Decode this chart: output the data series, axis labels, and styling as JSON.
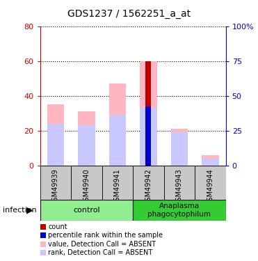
{
  "title": "GDS1237 / 1562251_a_at",
  "samples": [
    "GSM49939",
    "GSM49940",
    "GSM49941",
    "GSM49942",
    "GSM49943",
    "GSM49944"
  ],
  "value_bars": [
    35,
    31,
    47,
    60,
    21,
    6
  ],
  "rank_bars": [
    24,
    23,
    29,
    33,
    19,
    4
  ],
  "count_bars": [
    0,
    0,
    0,
    60,
    0,
    0
  ],
  "pct_rank_bars": [
    0,
    0,
    0,
    34,
    0,
    0
  ],
  "value_color": "#FFB6C1",
  "rank_color": "#C8C8FF",
  "count_color": "#BB0000",
  "pct_rank_color": "#0000CC",
  "ylim_left": [
    0,
    80
  ],
  "ylim_right": [
    0,
    100
  ],
  "yticks_left": [
    0,
    20,
    40,
    60,
    80
  ],
  "yticks_right": [
    0,
    25,
    50,
    75,
    100
  ],
  "ytick_labels_right": [
    "0",
    "25",
    "50",
    "75",
    "100%"
  ],
  "left_tick_color": "#CC0000",
  "right_tick_color": "#0000CC",
  "bar_width": 0.55,
  "narrow_bar_width": 0.18,
  "title_fontsize": 10,
  "ctrl_color": "#90EE90",
  "ana_color": "#33CC33",
  "sample_bg_color": "#C8C8C8",
  "legend_items": [
    {
      "color": "#BB0000",
      "label": "count"
    },
    {
      "color": "#0000CC",
      "label": "percentile rank within the sample"
    },
    {
      "color": "#FFB6C1",
      "label": "value, Detection Call = ABSENT"
    },
    {
      "color": "#C8C8FF",
      "label": "rank, Detection Call = ABSENT"
    }
  ]
}
